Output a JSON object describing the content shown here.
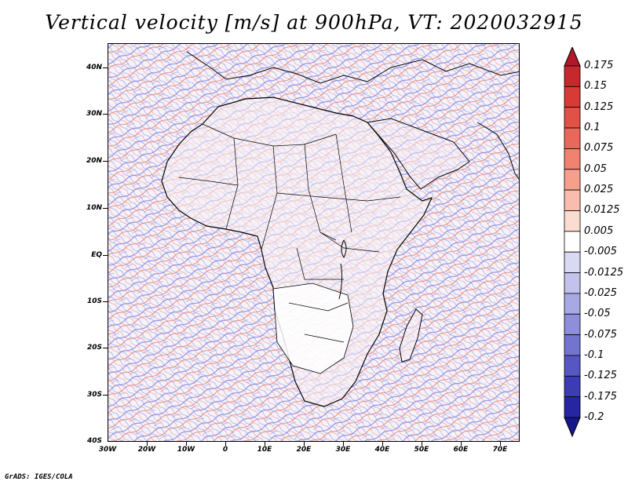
{
  "title": "Vertical velocity [m/s] at 900hPa, VT: 2020032915",
  "credit": "GrADS: IGES/COLA",
  "map": {
    "region": "Africa",
    "lat_labels": [
      "40N",
      "30N",
      "20N",
      "10N",
      "EQ",
      "10S",
      "20S",
      "30S",
      "40S"
    ],
    "lon_labels": [
      "30W",
      "20W",
      "10W",
      "0",
      "10E",
      "20E",
      "30E",
      "40E",
      "50E",
      "60E",
      "70E"
    ],
    "lat_range": [
      -40,
      45
    ],
    "lon_range": [
      -30,
      75
    ]
  },
  "colorbar": {
    "labels": [
      "0.175",
      "0.15",
      "0.125",
      "0.1",
      "0.075",
      "0.05",
      "0.025",
      "0.0125",
      "0.005",
      "-0.005",
      "-0.0125",
      "-0.025",
      "-0.05",
      "-0.075",
      "-0.1",
      "-0.125",
      "-0.175",
      "-0.2"
    ],
    "colors": [
      "#b2182b",
      "#c5282d",
      "#d63b36",
      "#e05246",
      "#e8685b",
      "#ef8370",
      "#f4a08d",
      "#f8bdad",
      "#fbdcd1",
      "#ffffff",
      "#d9d9f3",
      "#c2c2ec",
      "#a8a8e4",
      "#8e8edb",
      "#7373d0",
      "#5757c3",
      "#3c3cb3",
      "#2626a0",
      "#17178c"
    ]
  }
}
